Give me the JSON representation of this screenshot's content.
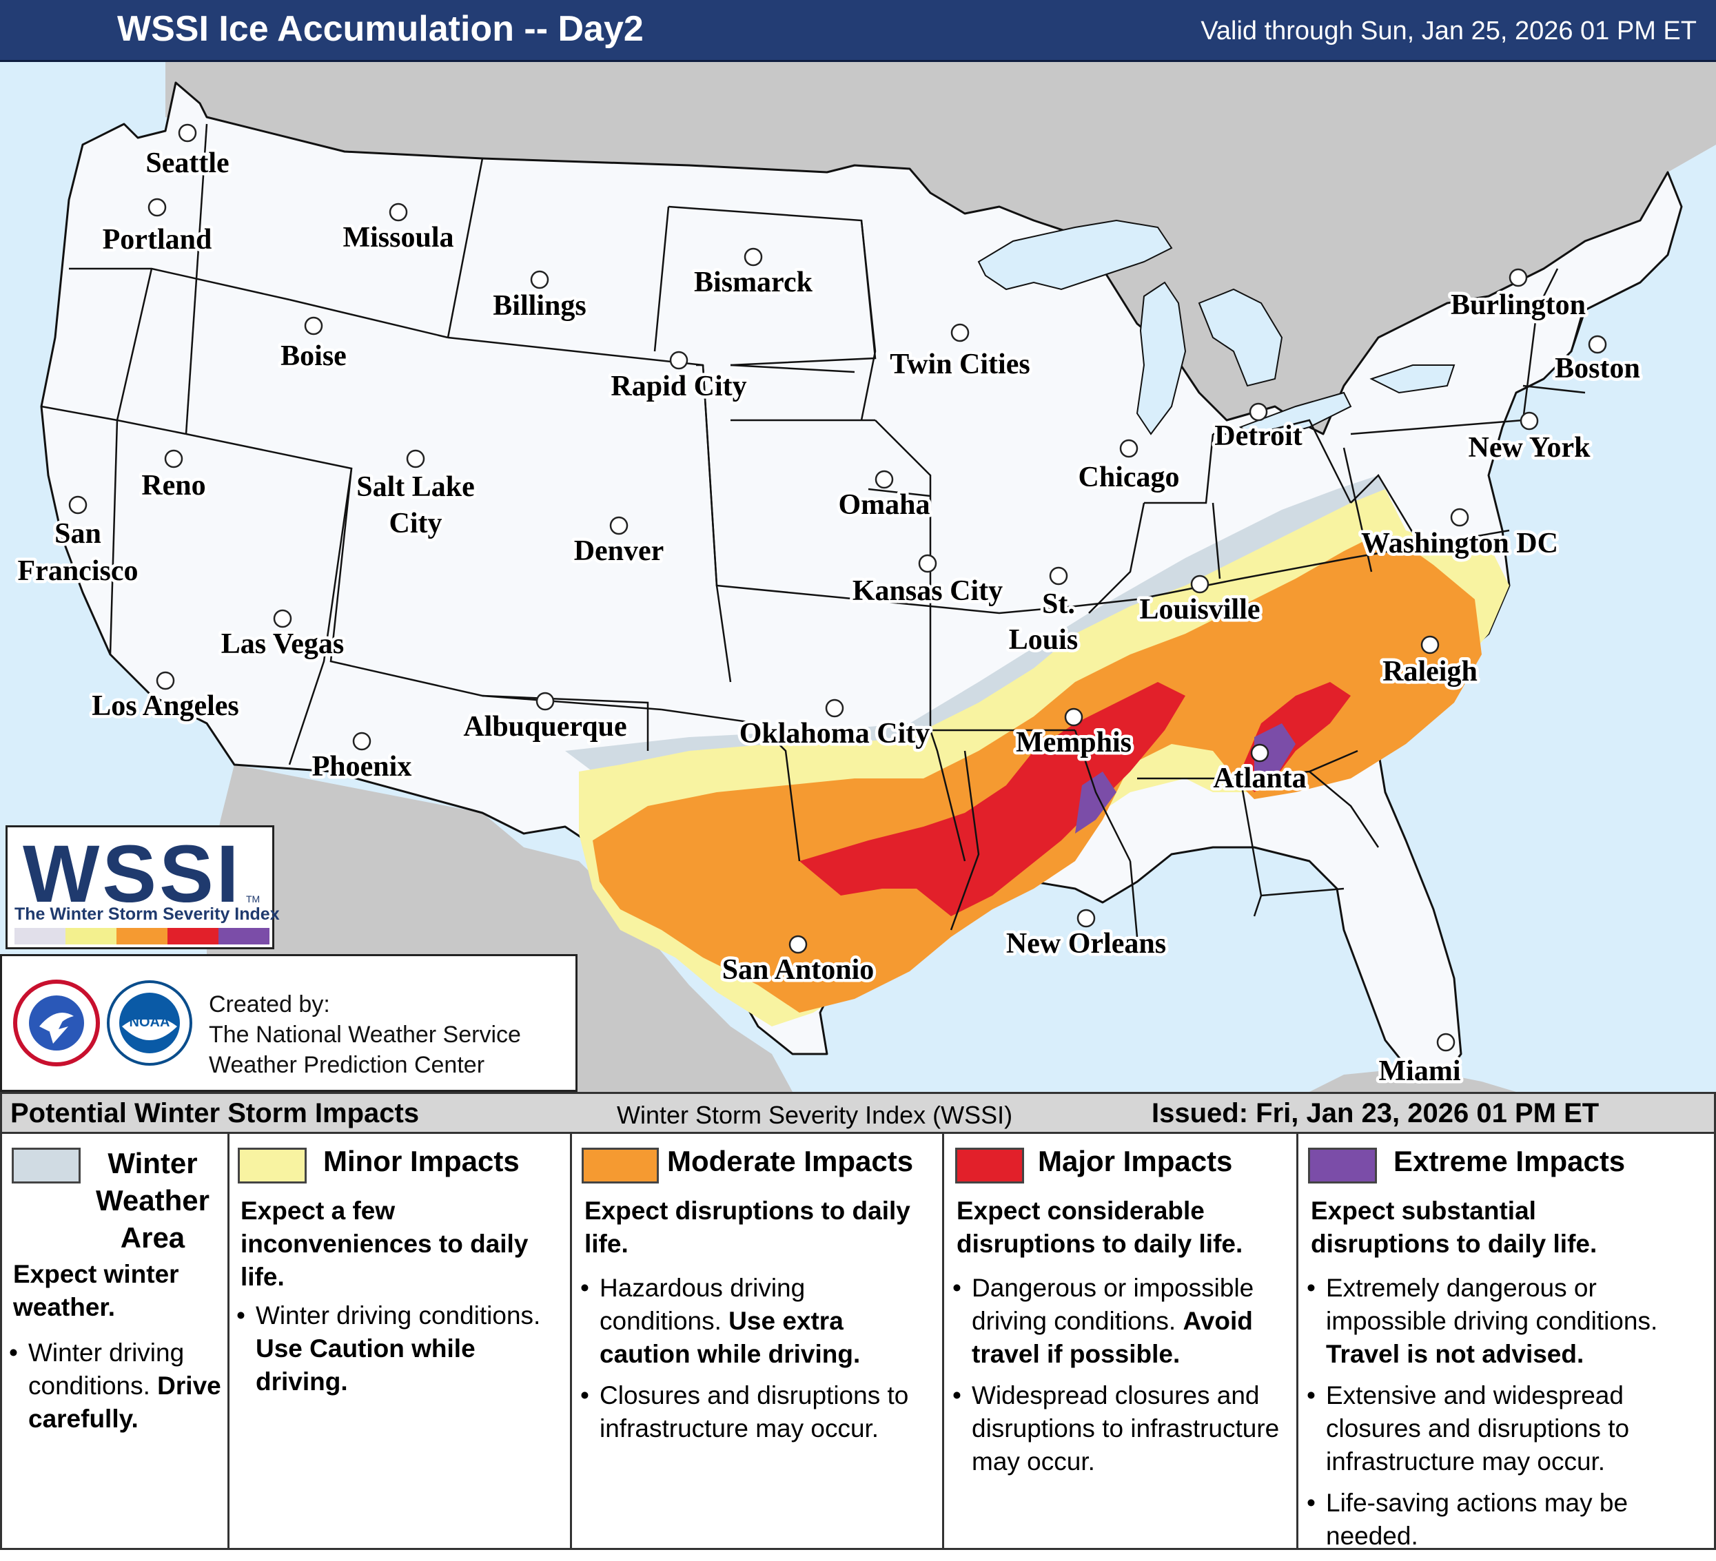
{
  "header": {
    "title": "WSSI Ice Accumulation -- Day2",
    "valid": "Valid through Sun, Jan 25, 2026 01 PM ET"
  },
  "map": {
    "cities": [
      {
        "name": "Seattle"
      },
      {
        "name": "Portland"
      },
      {
        "name": "Missoula"
      },
      {
        "name": "Billings"
      },
      {
        "name": "Bismarck"
      },
      {
        "name": "Boise"
      },
      {
        "name": "Rapid City"
      },
      {
        "name": "Twin Cities"
      },
      {
        "name": "Burlington"
      },
      {
        "name": "Boston"
      },
      {
        "name": "Reno"
      },
      {
        "name": "Salt Lake City"
      },
      {
        "name": "Denver"
      },
      {
        "name": "Omaha"
      },
      {
        "name": "Chicago"
      },
      {
        "name": "Detroit"
      },
      {
        "name": "New York"
      },
      {
        "name": "San Francisco"
      },
      {
        "name": "Washington DC"
      },
      {
        "name": "Kansas City"
      },
      {
        "name": "St. Louis"
      },
      {
        "name": "Louisville"
      },
      {
        "name": "Las Vegas"
      },
      {
        "name": "Los Angeles"
      },
      {
        "name": "Raleigh"
      },
      {
        "name": "Albuquerque"
      },
      {
        "name": "Oklahoma City"
      },
      {
        "name": "Memphis"
      },
      {
        "name": "Phoenix"
      },
      {
        "name": "Atlanta"
      },
      {
        "name": "New Orleans"
      },
      {
        "name": "San Antonio"
      },
      {
        "name": "Miami"
      }
    ],
    "colors": {
      "water": "#d9eefb",
      "land_foreign": "#c8c8c8",
      "land_us": "#f7f9fc",
      "winter_weather": "#d0dbe3",
      "minor": "#f8f3a1",
      "moderate": "#f59a31",
      "major": "#e2202a",
      "extreme": "#7b4da8"
    }
  },
  "logo": {
    "wssi": "WSSI",
    "tm": "TM",
    "subtitle": "The Winter Storm Severity Index"
  },
  "credit": {
    "line1": "Created by:",
    "line2": "The National Weather Service",
    "line3": "Weather Prediction Center"
  },
  "legend": {
    "left": "Potential Winter Storm Impacts",
    "center": "Winter Storm Severity Index (WSSI)",
    "right": "Issued: Fri, Jan 23, 2026 01 PM ET",
    "columns": [
      {
        "title_lines": [
          "Winter",
          "Weather",
          "Area"
        ],
        "color": "#d0dbe3",
        "desc": "Expect winter weather.",
        "bullets": [
          {
            "text": "Winter driving conditions. ",
            "bold": "Drive carefully."
          }
        ]
      },
      {
        "title": "Minor Impacts",
        "color": "#f8f3a1",
        "desc": "Expect a few inconveniences to daily life.",
        "bullets": [
          {
            "text": "Winter driving conditions. ",
            "bold": "Use Caution while driving."
          }
        ]
      },
      {
        "title": "Moderate Impacts",
        "color": "#f59a31",
        "desc": "Expect disruptions to daily life.",
        "bullets": [
          {
            "text": "Hazardous driving conditions. ",
            "bold": "Use extra caution while driving."
          },
          {
            "text": "Closures and disruptions to infrastructure may occur.",
            "bold": ""
          }
        ]
      },
      {
        "title": "Major Impacts",
        "color": "#e2202a",
        "desc": "Expect considerable disruptions to daily life.",
        "bullets": [
          {
            "text": "Dangerous or impossible driving conditions. ",
            "bold": "Avoid travel if possible."
          },
          {
            "text": "Widespread closures and disruptions to infrastructure may occur.",
            "bold": ""
          }
        ]
      },
      {
        "title": "Extreme Impacts",
        "color": "#7b4da8",
        "desc": "Expect substantial disruptions to daily life.",
        "bullets": [
          {
            "text": "Extremely dangerous or impossible driving conditions. ",
            "bold": "Travel is not advised."
          },
          {
            "text": "Extensive and widespread closures and disruptions to infrastructure may occur.",
            "bold": ""
          },
          {
            "text": "Life-saving actions may be needed.",
            "bold": ""
          }
        ]
      }
    ]
  }
}
